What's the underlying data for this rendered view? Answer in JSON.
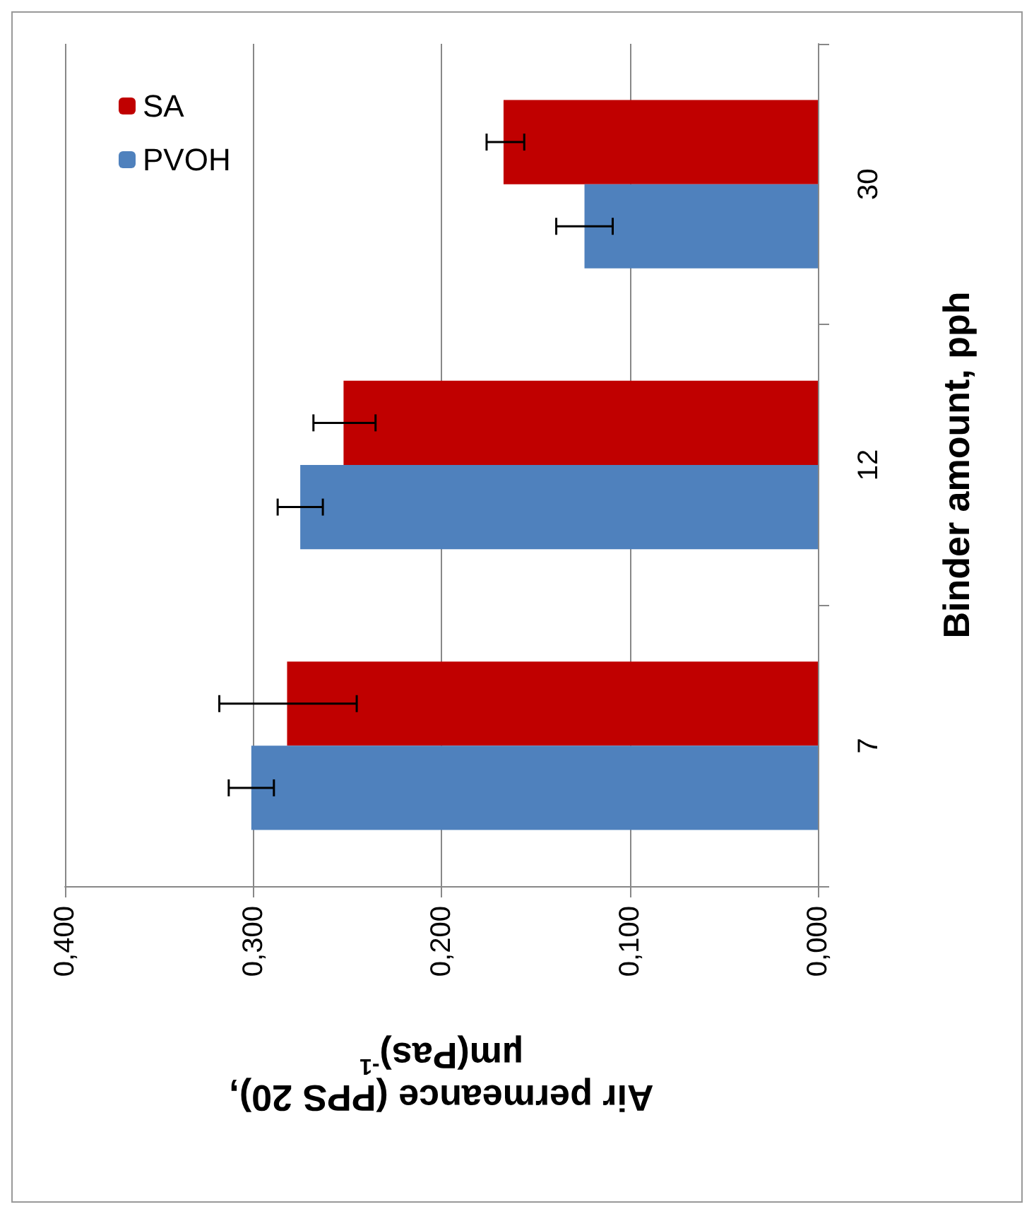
{
  "chart_data": {
    "type": "bar",
    "orientation": "horizontal",
    "ylabel": "Binder amount, pph",
    "xlabel": "Air permeance (PPS 20),\nµm(Pas)$^{-1}$",
    "categories": [
      "30",
      "12",
      "7"
    ],
    "series": [
      {
        "name": "SA",
        "color": "#c00000",
        "values": [
          0.167,
          0.252,
          0.282
        ],
        "errors": [
          [
            0.156,
            0.176
          ],
          [
            0.235,
            0.268
          ],
          [
            0.245,
            0.318
          ]
        ]
      },
      {
        "name": "PVOH",
        "color": "#4f81bd",
        "values": [
          0.124,
          0.275,
          0.301
        ],
        "errors": [
          0.015,
          0.012,
          0.012
        ]
      }
    ],
    "xlim": [
      0.4,
      0
    ],
    "xticks": [
      {
        "value": 0.4,
        "label": "0,400"
      },
      {
        "value": 0.3,
        "label": "0,300"
      },
      {
        "value": 0.2,
        "label": "0,200"
      },
      {
        "value": 0.1,
        "label": "0,100"
      },
      {
        "value": 0,
        "label": "0,000"
      }
    ],
    "grid": "x",
    "legend": "top left"
  }
}
